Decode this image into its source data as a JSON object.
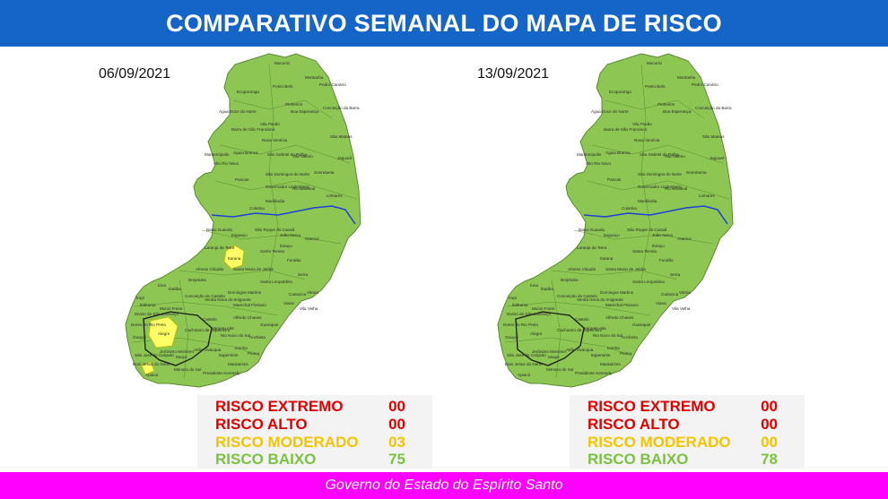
{
  "header": {
    "title": "COMPARATIVO SEMANAL DO MAPA DE RISCO"
  },
  "colors": {
    "header_bg": "#1565c8",
    "footer_bg": "#ff00ff",
    "risco_extremo": "#e00000",
    "risco_alto": "#e00000",
    "risco_moderado": "#f5c400",
    "risco_baixo": "#7cc242",
    "map_low": "#8dc653",
    "map_moderate": "#ffff66",
    "river": "#1f3fd6"
  },
  "legend_labels": {
    "extremo": "RISCO EXTREMO",
    "alto": "RISCO ALTO",
    "moderado": "RISCO MODERADO",
    "baixo": "RISCO BAIXO"
  },
  "panels": [
    {
      "date": "06/09/2021",
      "counts": {
        "extremo": "00",
        "alto": "00",
        "moderado": "03",
        "baixo": "75"
      },
      "moderate_municipalities": [
        "Itarana",
        "Alegre",
        "Apiacá"
      ]
    },
    {
      "date": "13/09/2021",
      "counts": {
        "extremo": "00",
        "alto": "00",
        "moderado": "00",
        "baixo": "78"
      },
      "moderate_municipalities": []
    }
  ],
  "map_labels": [
    "Mucurici",
    "Montanha",
    "Ponto Belo",
    "Pedro Canário",
    "Ecoporanga",
    "Pinheiros",
    "Água Doce do Norte",
    "Boa Esperança",
    "Conceição da Barra",
    "Barra de São Francisco",
    "Vila Pavão",
    "Nova Venécia",
    "São Mateus",
    "Mantenópolis",
    "Águia Branca",
    "São Gabriel da Palha",
    "Vila Valério",
    "Jaguaré",
    "Alto Rio Novo",
    "Pancas",
    "São Domingos do Norte",
    "Sooretama",
    "Governador Lindenberg",
    "Rio Bananal",
    "Linhares",
    "Colatina",
    "Marilândia",
    "Baixo Guandu",
    "São Roque do Canaã",
    "João Neiva",
    "Itaguaçu",
    "Ibiraçu",
    "Aracruz",
    "Laranja da Terra",
    "Itarana",
    "Santa Teresa",
    "Fundão",
    "Afonso Cláudio",
    "Santa Maria de Jetibá",
    "Serra",
    "Brejetuba",
    "Santa Leopoldina",
    "Cariacica",
    "Vitória",
    "Iúna",
    "Conceição do Castelo",
    "Venda Nova do Imigrante",
    "Domingos Martins",
    "Viana",
    "Vila Velha",
    "Irupi",
    "Ibatiba",
    "Marechal Floriano",
    "Divino de São Lourenço",
    "Muniz Freire",
    "Castelo",
    "Alfredo Chaves",
    "Guarapari",
    "Dores do Rio Preto",
    "Alegre",
    "Cachoeiro de Itapemirim",
    "Vargem Alta",
    "Anchieta",
    "Guaçuí",
    "Jerônimo Monteiro",
    "Rio Novo do Sul",
    "Iconha",
    "Piúma",
    "Muqui",
    "Atílio Vivácqua",
    "Itapemirim",
    "Marataízes",
    "Mimoso do Sul",
    "Presidente Kennedy",
    "Apiacá",
    "Bom Jesus do Norte",
    "São José do Calçado",
    "Ibitirama"
  ],
  "footer": {
    "text": "Governo do Estado do Espírito Santo"
  }
}
